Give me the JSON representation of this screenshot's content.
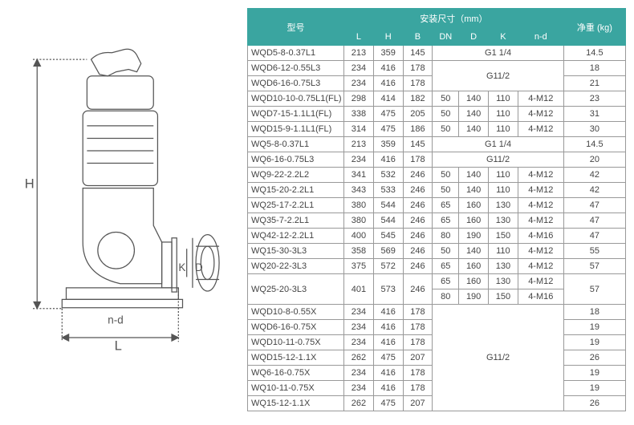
{
  "table": {
    "header": {
      "model": "型号",
      "dims": "安装尺寸（mm）",
      "weight": "净重\n(kg)",
      "cols": [
        "L",
        "H",
        "B",
        "DN",
        "D",
        "K",
        "n-d"
      ]
    },
    "rows": [
      {
        "m": "WQD5-8-0.37L1",
        "l": "213",
        "h": "359",
        "b": "145",
        "span": "G1 1/4",
        "w": "14.5"
      },
      {
        "m": "WQD6-12-0.55L3",
        "l": "234",
        "h": "416",
        "b": "178",
        "span2": "G11/2",
        "w": "18"
      },
      {
        "m": "WQD6-16-0.75L3",
        "l": "234",
        "h": "416",
        "b": "178",
        "w": "21"
      },
      {
        "m": "WQD10-10-0.75L1(FL)",
        "l": "298",
        "h": "414",
        "b": "182",
        "dn": "50",
        "d": "140",
        "k": "110",
        "nd": "4-M12",
        "w": "23"
      },
      {
        "m": "WQD7-15-1.1L1(FL)",
        "l": "338",
        "h": "475",
        "b": "205",
        "dn": "50",
        "d": "140",
        "k": "110",
        "nd": "4-M12",
        "w": "31"
      },
      {
        "m": "WQD15-9-1.1L1(FL)",
        "l": "314",
        "h": "475",
        "b": "186",
        "dn": "50",
        "d": "140",
        "k": "110",
        "nd": "4-M12",
        "w": "30"
      },
      {
        "m": "WQ5-8-0.37L1",
        "l": "213",
        "h": "359",
        "b": "145",
        "span": "G1 1/4",
        "w": "14.5"
      },
      {
        "m": "WQ6-16-0.75L3",
        "l": "234",
        "h": "416",
        "b": "178",
        "span": "G11/2",
        "w": "20"
      },
      {
        "m": "WQ9-22-2.2L2",
        "l": "341",
        "h": "532",
        "b": "246",
        "dn": "50",
        "d": "140",
        "k": "110",
        "nd": "4-M12",
        "w": "42"
      },
      {
        "m": "WQ15-20-2.2L1",
        "l": "343",
        "h": "533",
        "b": "246",
        "dn": "50",
        "d": "140",
        "k": "110",
        "nd": "4-M12",
        "w": "42"
      },
      {
        "m": "WQ25-17-2.2L1",
        "l": "380",
        "h": "544",
        "b": "246",
        "dn": "65",
        "d": "160",
        "k": "130",
        "nd": "4-M12",
        "w": "47"
      },
      {
        "m": "WQ35-7-2.2L1",
        "l": "380",
        "h": "544",
        "b": "246",
        "dn": "65",
        "d": "160",
        "k": "130",
        "nd": "4-M12",
        "w": "47"
      },
      {
        "m": "WQ42-12-2.2L1",
        "l": "400",
        "h": "545",
        "b": "246",
        "dn": "80",
        "d": "190",
        "k": "150",
        "nd": "4-M16",
        "w": "47"
      },
      {
        "m": "WQ15-30-3L3",
        "l": "358",
        "h": "569",
        "b": "246",
        "dn": "50",
        "d": "140",
        "k": "110",
        "nd": "4-M12",
        "w": "55"
      },
      {
        "m": "WQ20-22-3L3",
        "l": "375",
        "h": "572",
        "b": "246",
        "dn": "65",
        "d": "160",
        "k": "130",
        "nd": "4-M12",
        "w": "57"
      },
      {
        "m": "WQ25-20-3L3",
        "l": "401",
        "h": "573",
        "b": "246",
        "dn": "65",
        "d": "160",
        "k": "130",
        "nd": "4-M12",
        "w": "57",
        "dual": true,
        "dn2": "80",
        "d2": "190",
        "k2": "150",
        "nd2": "4-M16"
      },
      {
        "m": "WQD10-8-0.55X",
        "l": "234",
        "h": "416",
        "b": "178",
        "w": "18",
        "xgroup": true
      },
      {
        "m": "WQD6-16-0.75X",
        "l": "234",
        "h": "416",
        "b": "178",
        "w": "19"
      },
      {
        "m": "WQD10-11-0.75X",
        "l": "234",
        "h": "416",
        "b": "178",
        "w": "19"
      },
      {
        "m": "WQD15-12-1.1X",
        "l": "262",
        "h": "475",
        "b": "207",
        "w": "26"
      },
      {
        "m": "WQ6-16-0.75X",
        "l": "234",
        "h": "416",
        "b": "178",
        "w": "19"
      },
      {
        "m": "WQ10-11-0.75X",
        "l": "234",
        "h": "416",
        "b": "178",
        "w": "19"
      },
      {
        "m": "WQ15-12-1.1X",
        "l": "262",
        "h": "475",
        "b": "207",
        "w": "26"
      }
    ],
    "xspan": "G11/2"
  },
  "diagram": {
    "labels": {
      "H": "H",
      "L": "L",
      "K": "K",
      "D": "D",
      "nd": "n-d"
    }
  }
}
